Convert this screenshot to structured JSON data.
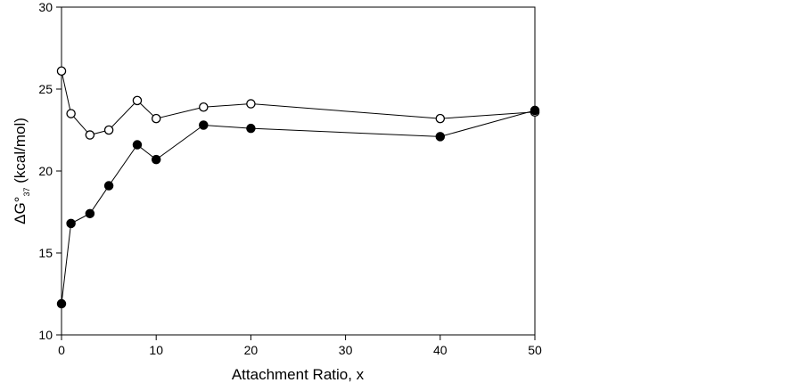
{
  "chart_data": {
    "type": "line",
    "title": "",
    "xlabel": "Attachment Ratio, x",
    "ylabel": {
      "main_prefix": "ΔG°",
      "subscript": "37",
      "suffix": " (kcal/mol)"
    },
    "xlim": [
      0,
      50
    ],
    "ylim": [
      10,
      30
    ],
    "xticks": [
      0,
      10,
      20,
      30,
      40,
      50
    ],
    "yticks": [
      10,
      15,
      20,
      25,
      30
    ],
    "grid": false,
    "legend": "none",
    "series": [
      {
        "marker": "open-circle",
        "color": "#000000",
        "x": [
          0,
          1,
          3,
          5,
          8,
          10,
          15,
          20,
          40,
          50
        ],
        "y": [
          26.1,
          23.5,
          22.2,
          22.5,
          24.3,
          23.2,
          23.9,
          24.1,
          23.2,
          23.6
        ]
      },
      {
        "marker": "filled-circle",
        "color": "#000000",
        "x": [
          0,
          1,
          3,
          5,
          8,
          10,
          15,
          20,
          40,
          50
        ],
        "y": [
          11.9,
          16.8,
          17.4,
          19.1,
          21.6,
          20.7,
          22.8,
          22.6,
          22.1,
          23.7
        ]
      }
    ]
  }
}
